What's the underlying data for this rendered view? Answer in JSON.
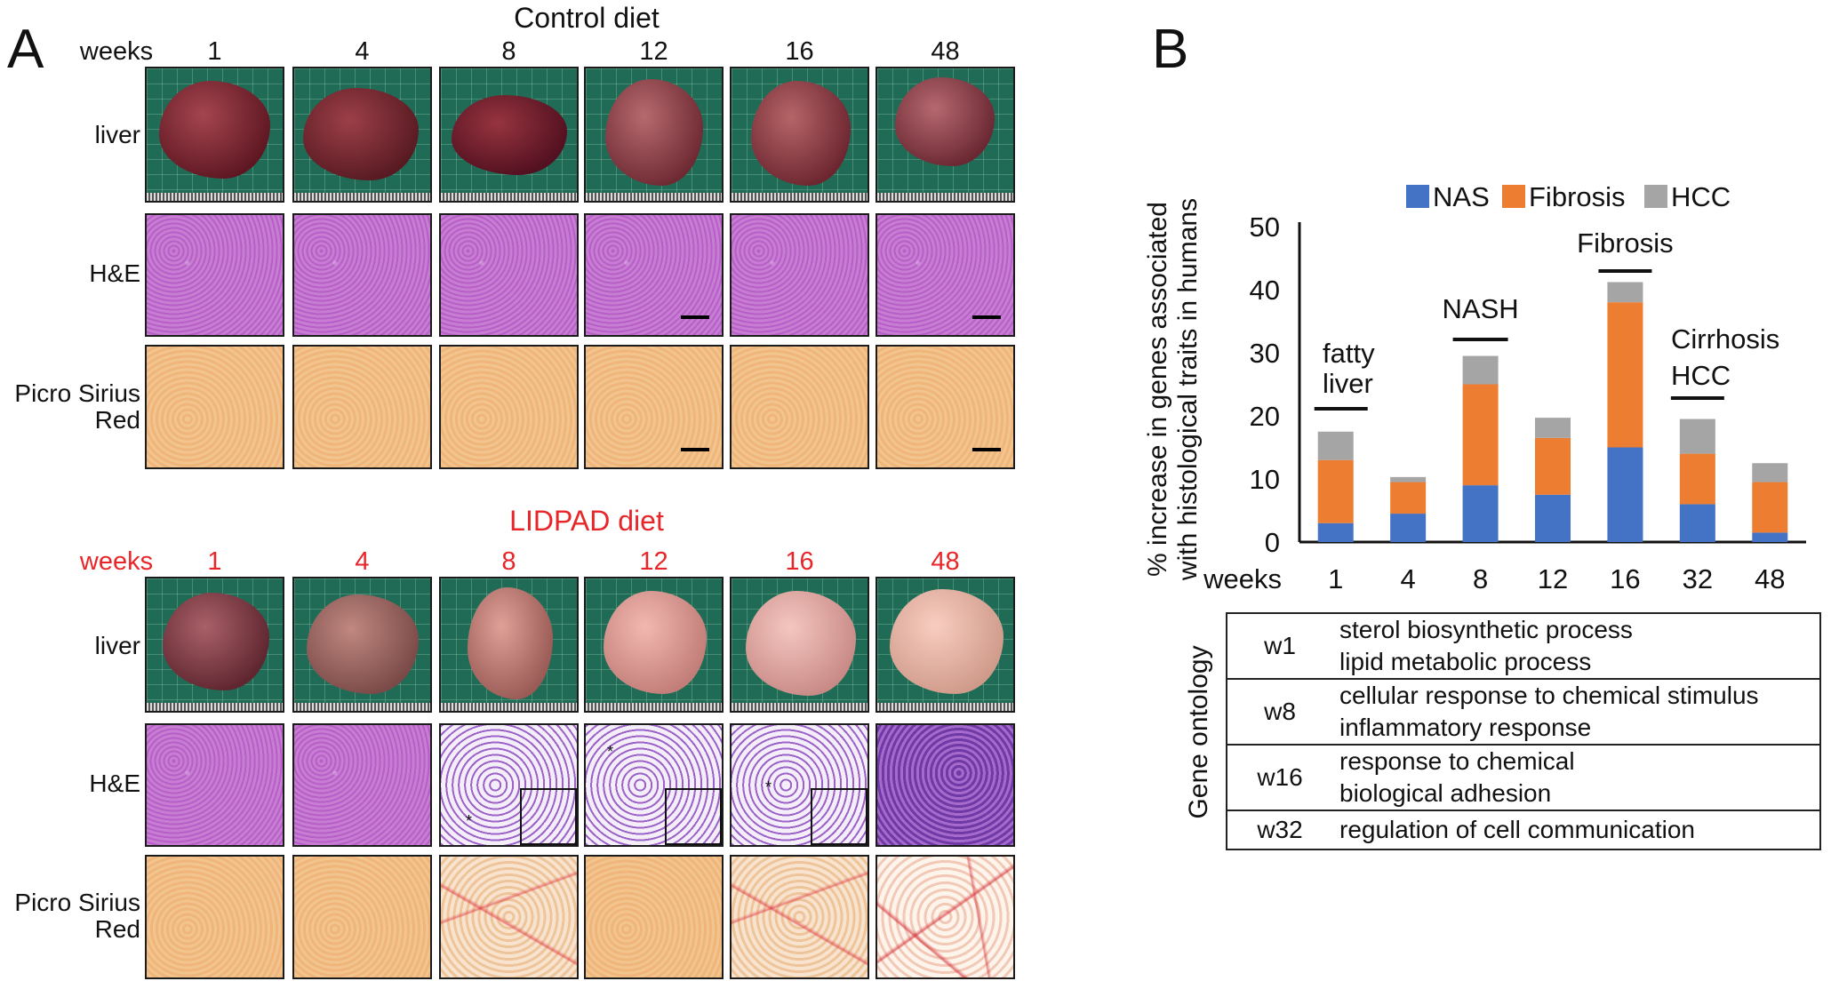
{
  "panel_a": {
    "letter": "A",
    "control": {
      "title": "Control diet",
      "weeks_label": "weeks",
      "weeks": [
        "1",
        "4",
        "8",
        "12",
        "16",
        "48"
      ],
      "rows": [
        "liver",
        "H&E",
        "Picro Sirius\nRed"
      ]
    },
    "lidpad": {
      "title": "LIDPAD diet",
      "weeks_label": "weeks",
      "weeks": [
        "1",
        "4",
        "8",
        "12",
        "16",
        "48"
      ],
      "rows": [
        "liver",
        "H&E",
        "Picro Sirius\nRed"
      ]
    },
    "colors": {
      "red": "#e8262a"
    }
  },
  "panel_b": {
    "letter": "B",
    "chart_data": {
      "type": "bar",
      "stacked": true,
      "categories": [
        "1",
        "4",
        "8",
        "12",
        "16",
        "32",
        "48"
      ],
      "xlabel": "weeks",
      "ylabel": "% increase in genes associated\nwith histological traits in humans",
      "ylim": [
        0,
        50
      ],
      "yticks": [
        "0",
        "10",
        "20",
        "30",
        "40",
        "50"
      ],
      "legend": [
        "NAS",
        "Fibrosis",
        "HCC"
      ],
      "legend_position": "top",
      "series": [
        {
          "name": "NAS",
          "color": "#4472c4",
          "values": [
            3,
            4.5,
            9,
            7.5,
            15,
            6,
            1.5
          ]
        },
        {
          "name": "Fibrosis",
          "color": "#ed7d31",
          "values": [
            10,
            5,
            16,
            9,
            23,
            8,
            8
          ]
        },
        {
          "name": "HCC",
          "color": "#a5a5a5",
          "values": [
            4.5,
            0.8,
            4.5,
            3.2,
            3.2,
            5.5,
            3
          ]
        }
      ],
      "annotations": [
        {
          "text": "fatty\nliver",
          "span": [
            "1",
            "1"
          ]
        },
        {
          "text": "NASH",
          "span": [
            "8",
            "8"
          ]
        },
        {
          "text": "Fibrosis",
          "span": [
            "16",
            "16"
          ]
        },
        {
          "text": "Cirrhosis\nHCC",
          "span": [
            "32",
            "32"
          ]
        }
      ]
    },
    "gene_ontology": {
      "label": "Gene ontology",
      "rows": [
        {
          "week": "w1",
          "terms": [
            "sterol biosynthetic process",
            "lipid metabolic process"
          ]
        },
        {
          "week": "w8",
          "terms": [
            "cellular response to chemical stimulus",
            "inflammatory response"
          ]
        },
        {
          "week": "w16",
          "terms": [
            "response to chemical",
            "biological adhesion"
          ]
        },
        {
          "week": "w32",
          "terms": [
            "regulation of cell communication"
          ]
        }
      ]
    }
  }
}
